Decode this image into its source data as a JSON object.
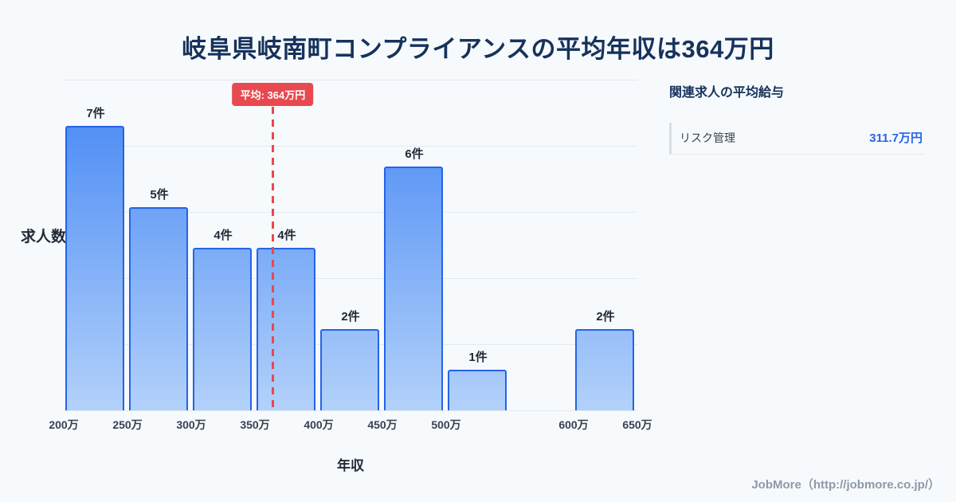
{
  "page": {
    "title": "岐阜県岐南町コンプライアンスの平均年収は364万円",
    "footer": "JobMore（http://jobmore.co.jp/）"
  },
  "chart_data": {
    "type": "bar",
    "title": "岐阜県岐南町コンプライアンスの平均年収は364万円",
    "xlabel": "年収",
    "ylabel": "求人数",
    "x_start": 200,
    "bin_size": 50,
    "ylim": [
      0,
      8.14
    ],
    "grid": true,
    "bins": [
      {
        "start": "200万",
        "end": "250万",
        "count": 7,
        "label": "7件"
      },
      {
        "start": "250万",
        "end": "300万",
        "count": 5,
        "label": "5件"
      },
      {
        "start": "300万",
        "end": "350万",
        "count": 4,
        "label": "4件"
      },
      {
        "start": "350万",
        "end": "400万",
        "count": 4,
        "label": "4件"
      },
      {
        "start": "400万",
        "end": "450万",
        "count": 2,
        "label": "2件"
      },
      {
        "start": "450万",
        "end": "500万",
        "count": 6,
        "label": "6件"
      },
      {
        "start": "500万",
        "end": "550万",
        "count": 1,
        "label": "1件"
      },
      {
        "start": "550万",
        "end": "600万",
        "count": 0,
        "label": ""
      },
      {
        "start": "600万",
        "end": "650万",
        "count": 2,
        "label": "2件"
      }
    ],
    "x_ticks": [
      {
        "label": "200万",
        "edge": 0
      },
      {
        "label": "250万",
        "edge": 1
      },
      {
        "label": "300万",
        "edge": 2
      },
      {
        "label": "350万",
        "edge": 3
      },
      {
        "label": "400万",
        "edge": 4
      },
      {
        "label": "450万",
        "edge": 5
      },
      {
        "label": "500万",
        "edge": 6
      },
      {
        "label": "600万",
        "edge": 8
      },
      {
        "label": "650万",
        "edge": 9
      }
    ],
    "average": {
      "value": 364,
      "label": "平均: 364万円"
    },
    "colors": {
      "bar_gradient_top": "#4285f4",
      "bar_gradient_bottom": "#b3d1fa",
      "bar_border": "#2563eb",
      "average_line": "#e8484f",
      "grid_line": "#e4e9f1",
      "title_navy": "#16325c",
      "value_blue": "#2563eb",
      "background": "#f7fafc"
    }
  },
  "panel": {
    "heading": "関連求人の平均給与",
    "items": [
      {
        "label": "リスク管理",
        "value": "311.7万円"
      }
    ]
  }
}
